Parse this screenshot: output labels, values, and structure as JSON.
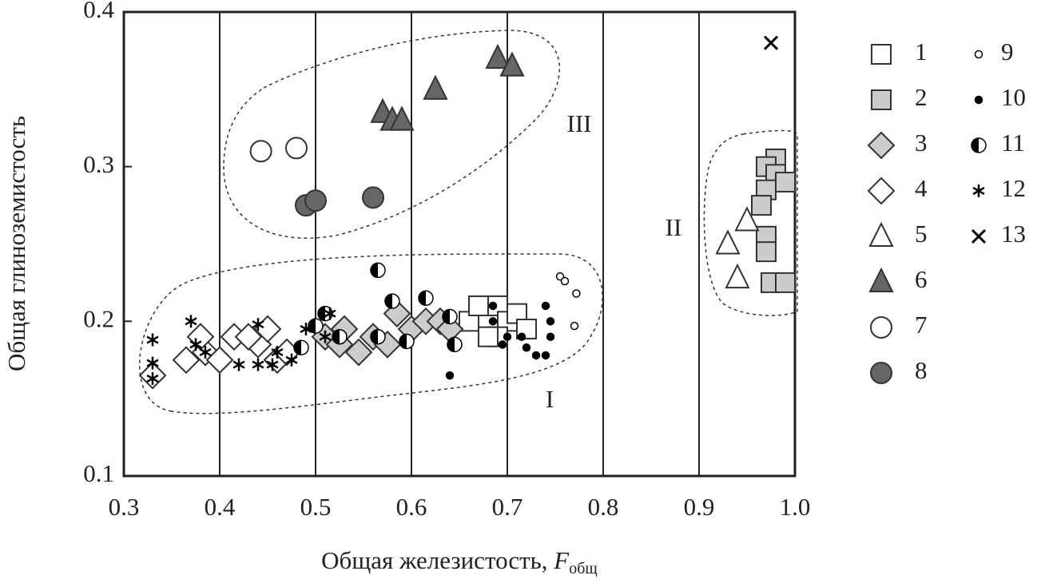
{
  "chart_data": {
    "type": "scatter",
    "x_label": {
      "text": "Общая железистость, ",
      "var": "F",
      "sub": "общ"
    },
    "y_label": "Общая глиноземистость",
    "xlim": [
      0.3,
      1.0
    ],
    "ylim": [
      0.1,
      0.4
    ],
    "xticks": [
      0.3,
      0.4,
      0.5,
      0.6,
      0.7,
      0.8,
      0.9,
      {
        "value": 1.0,
        "label": "1.0"
      }
    ],
    "yticks": [
      0.1,
      0.2,
      0.3,
      0.4
    ],
    "grid": "x",
    "annotations": [
      "I",
      "II",
      "III"
    ],
    "series": [
      {
        "name": "1",
        "marker": "square",
        "color": "#ffffff",
        "x": [
          0.67,
          0.68,
          0.69,
          0.7,
          0.66,
          0.69,
          0.71,
          0.72,
          0.68,
          0.67
        ],
        "values": [
          0.205,
          0.2,
          0.21,
          0.2,
          0.2,
          0.19,
          0.205,
          0.195,
          0.19,
          0.21
        ]
      },
      {
        "name": "2",
        "marker": "square",
        "color": "#cccccc",
        "x": [
          0.98,
          0.97,
          0.98,
          0.99,
          0.97,
          0.965,
          0.97,
          0.97,
          0.975,
          0.99
        ],
        "values": [
          0.305,
          0.3,
          0.295,
          0.29,
          0.285,
          0.275,
          0.255,
          0.245,
          0.225,
          0.225
        ]
      },
      {
        "name": "3",
        "marker": "diamond",
        "color": "#cccccc",
        "x": [
          0.51,
          0.53,
          0.545,
          0.56,
          0.575,
          0.585,
          0.6,
          0.615,
          0.63,
          0.64,
          0.525
        ],
        "values": [
          0.19,
          0.195,
          0.18,
          0.19,
          0.185,
          0.205,
          0.195,
          0.2,
          0.2,
          0.195,
          0.185
        ]
      },
      {
        "name": "4",
        "marker": "diamond",
        "color": "#ffffff",
        "x": [
          0.33,
          0.365,
          0.385,
          0.4,
          0.415,
          0.38,
          0.44,
          0.45,
          0.46,
          0.47,
          0.43
        ],
        "values": [
          0.165,
          0.175,
          0.18,
          0.175,
          0.19,
          0.19,
          0.185,
          0.195,
          0.175,
          0.18,
          0.19
        ]
      },
      {
        "name": "5",
        "marker": "triangle",
        "color": "#ffffff",
        "x": [
          0.93,
          0.95,
          0.94
        ],
        "values": [
          0.25,
          0.265,
          0.228
        ]
      },
      {
        "name": "6",
        "marker": "triangle",
        "color": "#666666",
        "x": [
          0.57,
          0.58,
          0.59,
          0.625,
          0.69,
          0.705
        ],
        "values": [
          0.335,
          0.33,
          0.33,
          0.35,
          0.37,
          0.365
        ]
      },
      {
        "name": "7",
        "marker": "circle",
        "color": "#ffffff",
        "x": [
          0.443,
          0.48
        ],
        "values": [
          0.31,
          0.312
        ]
      },
      {
        "name": "8",
        "marker": "circle",
        "color": "#666666",
        "x": [
          0.49,
          0.5,
          0.56
        ],
        "values": [
          0.275,
          0.278,
          0.28
        ]
      },
      {
        "name": "9",
        "marker": "small-circle",
        "color": "#ffffff",
        "x": [
          0.755,
          0.76,
          0.772,
          0.77
        ],
        "values": [
          0.229,
          0.226,
          0.218,
          0.197
        ]
      },
      {
        "name": "10",
        "marker": "small-circle",
        "color": "#000000",
        "x": [
          0.64,
          0.685,
          0.7,
          0.715,
          0.72,
          0.73,
          0.74,
          0.745,
          0.74,
          0.685,
          0.745,
          0.695
        ],
        "values": [
          0.165,
          0.2,
          0.19,
          0.19,
          0.183,
          0.178,
          0.178,
          0.19,
          0.21,
          0.21,
          0.2,
          0.185
        ]
      },
      {
        "name": "11",
        "marker": "half-circle",
        "color": "#000000",
        "x": [
          0.565,
          0.58,
          0.615,
          0.64,
          0.645,
          0.565,
          0.595,
          0.51,
          0.5,
          0.525,
          0.485
        ],
        "values": [
          0.233,
          0.213,
          0.215,
          0.203,
          0.185,
          0.19,
          0.187,
          0.205,
          0.197,
          0.19,
          0.183
        ]
      },
      {
        "name": "12",
        "marker": "asterisk",
        "color": "#000000",
        "x": [
          0.33,
          0.33,
          0.33,
          0.37,
          0.375,
          0.385,
          0.42,
          0.44,
          0.44,
          0.455,
          0.46,
          0.475,
          0.49,
          0.51,
          0.515
        ],
        "values": [
          0.163,
          0.173,
          0.188,
          0.2,
          0.185,
          0.18,
          0.172,
          0.198,
          0.172,
          0.172,
          0.18,
          0.175,
          0.195,
          0.19,
          0.205
        ]
      },
      {
        "name": "13",
        "marker": "cross",
        "color": "#000000",
        "x": [
          0.975
        ],
        "values": [
          0.38
        ]
      }
    ]
  }
}
